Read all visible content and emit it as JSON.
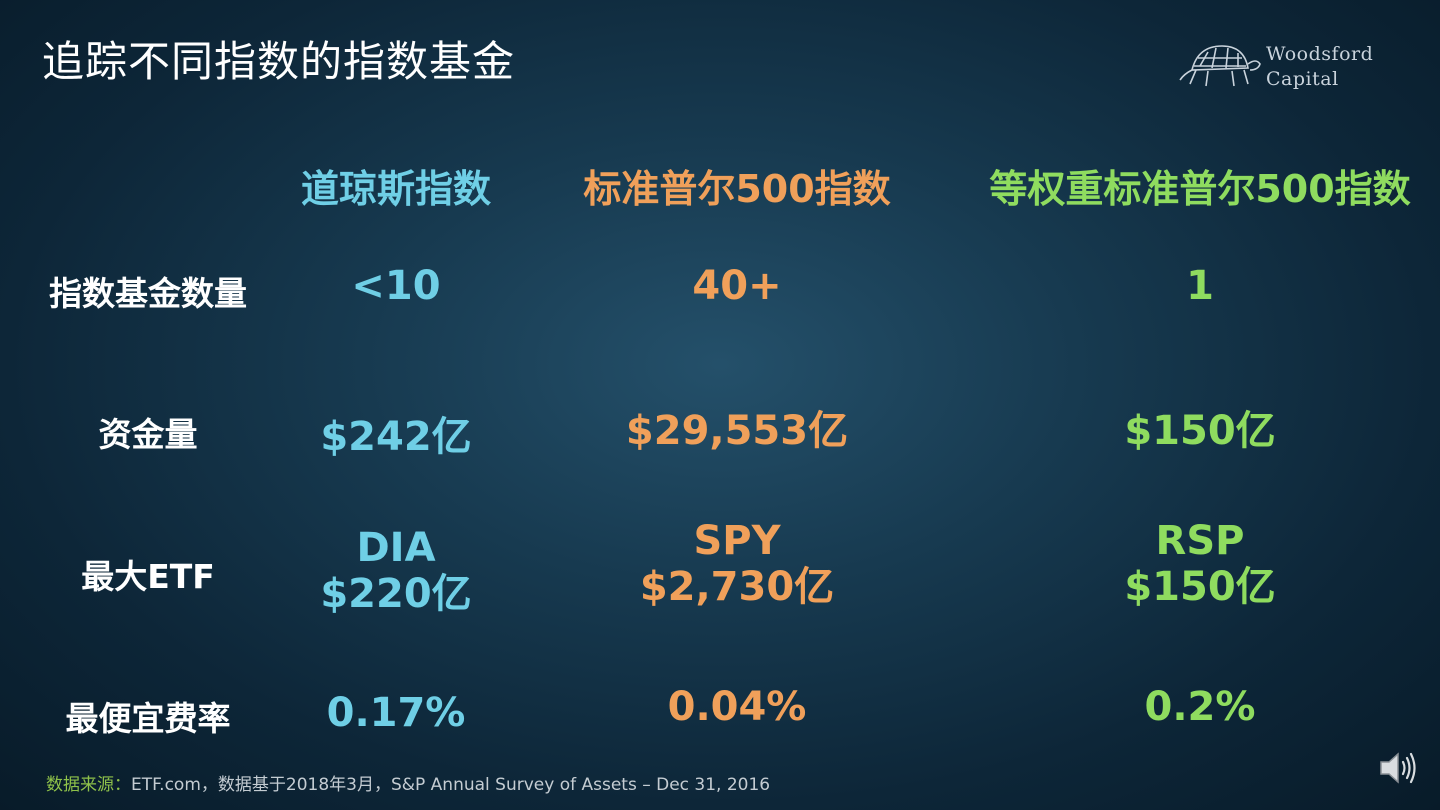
{
  "title": "追踪不同指数的指数基金",
  "logo": {
    "line1": "Woodsford",
    "line2": "Capital",
    "icon": "tortoise-icon"
  },
  "colors": {
    "dow": "#6fcfe6",
    "sp500": "#f0a05a",
    "equal_weight": "#8fdc5f"
  },
  "columns": [
    {
      "header": "道琼斯指数",
      "count": "<10",
      "assets": "$242亿",
      "etf_name": "DIA",
      "etf_assets": "$220亿",
      "expense": "0.17%"
    },
    {
      "header": "标准普尔500指数",
      "count": "40+",
      "assets": "$29,553亿",
      "etf_name": "SPY",
      "etf_assets": "$2,730亿",
      "expense": "0.04%"
    },
    {
      "header": "等权重标准普尔500指数",
      "count": "1",
      "assets": "$150亿",
      "etf_name": "RSP",
      "etf_assets": "$150亿",
      "expense": "0.2%"
    }
  ],
  "row_labels": {
    "count": "指数基金数量",
    "assets": "资金量",
    "largest_etf": "最大ETF",
    "expense": "最便宜费率"
  },
  "footer": {
    "source_label": "数据来源：",
    "source_text": "ETF.com，数据基于2018年3月，S&P Annual Survey of Assets – Dec 31, 2016"
  },
  "speaker_icon": "speaker-icon"
}
